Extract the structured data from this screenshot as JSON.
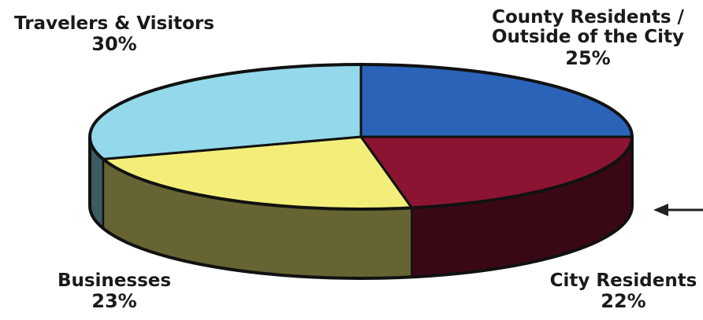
{
  "chart_data": {
    "type": "pie",
    "title": "",
    "slices": [
      {
        "label": "County Residents / Outside of the City",
        "label_lines": [
          "County Residents /",
          "Outside of the City"
        ],
        "value": 25,
        "value_label": "25%",
        "color": "#2b63b8"
      },
      {
        "label": "City Residents",
        "label_lines": [
          "City Residents"
        ],
        "value": 22,
        "value_label": "22%",
        "color": "#8a1431"
      },
      {
        "label": "Businesses",
        "label_lines": [
          "Businesses"
        ],
        "value": 23,
        "value_label": "23%",
        "color": "#f2ee79"
      },
      {
        "label": "Travelers & Visitors",
        "label_lines": [
          "Travelers & Visitors"
        ],
        "value": 30,
        "value_label": "30%",
        "color": "#93d8eb"
      }
    ]
  }
}
